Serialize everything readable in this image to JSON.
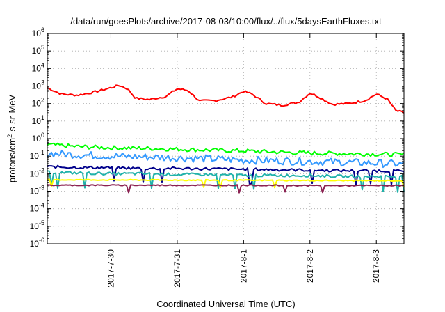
{
  "chart_data": {
    "type": "line",
    "title": "/data/run/goesPlots/archive/2017-08-03/10:00/flux/../flux/5daysEarthFluxes.txt",
    "xlabel": "Coordinated Universal Time (UTC)",
    "ylabel_parts": [
      "protons/cm",
      "2",
      "-s-sr-MeV"
    ],
    "yscale": "log",
    "ylim": [
      1e-06,
      1000000.0
    ],
    "y_ticks": [
      {
        "base": "10",
        "exp": "-6"
      },
      {
        "base": "10",
        "exp": "-5"
      },
      {
        "base": "10",
        "exp": "-4"
      },
      {
        "base": "10",
        "exp": "-3"
      },
      {
        "base": "10",
        "exp": "-2"
      },
      {
        "base": "10",
        "exp": "-1"
      },
      {
        "base": "10",
        "exp": "0"
      },
      {
        "base": "10",
        "exp": "1"
      },
      {
        "base": "10",
        "exp": "2"
      },
      {
        "base": "10",
        "exp": "3"
      },
      {
        "base": "10",
        "exp": "4"
      },
      {
        "base": "10",
        "exp": "5"
      },
      {
        "base": "10",
        "exp": "6"
      }
    ],
    "xlim": [
      "2017-07-29T01:00",
      "2017-08-03T10:00"
    ],
    "x_ticks": [
      "2017-7-30",
      "2017-7-31",
      "2017-8-1",
      "2017-8-2",
      "2017-8-3"
    ],
    "grid": true,
    "series": [
      {
        "color": "#ff0000",
        "width": 2,
        "points": [
          [
            "2017-07-29T01:00",
            800
          ],
          [
            "2017-07-29T06:00",
            350
          ],
          [
            "2017-07-29T12:00",
            300
          ],
          [
            "2017-07-29T18:00",
            450
          ],
          [
            "2017-07-30T00:00",
            800
          ],
          [
            "2017-07-30T03:00",
            1100
          ],
          [
            "2017-07-30T06:00",
            700
          ],
          [
            "2017-07-30T09:00",
            200
          ],
          [
            "2017-07-30T14:00",
            170
          ],
          [
            "2017-07-30T20:00",
            260
          ],
          [
            "2017-07-31T00:00",
            700
          ],
          [
            "2017-07-31T04:00",
            550
          ],
          [
            "2017-07-31T08:00",
            140
          ],
          [
            "2017-07-31T14:00",
            150
          ],
          [
            "2017-07-31T20:00",
            240
          ],
          [
            "2017-08-01T00:00",
            500
          ],
          [
            "2017-08-01T03:00",
            350
          ],
          [
            "2017-08-01T08:00",
            100
          ],
          [
            "2017-08-01T14:00",
            80
          ],
          [
            "2017-08-01T20:00",
            120
          ],
          [
            "2017-08-02T00:00",
            400
          ],
          [
            "2017-08-02T03:00",
            250
          ],
          [
            "2017-08-02T08:00",
            90
          ],
          [
            "2017-08-02T14:00",
            100
          ],
          [
            "2017-08-02T20:00",
            150
          ],
          [
            "2017-08-03T00:00",
            350
          ],
          [
            "2017-08-03T04:00",
            180
          ],
          [
            "2017-08-03T07:00",
            40
          ],
          [
            "2017-08-03T10:00",
            30
          ]
        ]
      },
      {
        "color": "#00ff00",
        "width": 2,
        "points": [
          [
            "2017-07-29T01:00",
            0.45
          ],
          [
            "2017-07-29T12:00",
            0.35
          ],
          [
            "2017-07-30T00:00",
            0.3
          ],
          [
            "2017-07-30T12:00",
            0.28
          ],
          [
            "2017-07-31T00:00",
            0.25
          ],
          [
            "2017-07-31T12:00",
            0.22
          ],
          [
            "2017-08-01T00:00",
            0.2
          ],
          [
            "2017-08-01T12:00",
            0.17
          ],
          [
            "2017-08-02T00:00",
            0.15
          ],
          [
            "2017-08-02T12:00",
            0.14
          ],
          [
            "2017-08-03T00:00",
            0.13
          ],
          [
            "2017-08-03T10:00",
            0.12
          ]
        ]
      },
      {
        "color": "#3399ff",
        "width": 2,
        "points": [
          [
            "2017-07-29T01:00",
            0.15
          ],
          [
            "2017-07-29T12:00",
            0.12
          ],
          [
            "2017-07-30T00:00",
            0.1
          ],
          [
            "2017-07-30T12:00",
            0.09
          ],
          [
            "2017-07-31T00:00",
            0.08
          ],
          [
            "2017-07-31T12:00",
            0.07
          ],
          [
            "2017-08-01T00:00",
            0.06
          ],
          [
            "2017-08-01T12:00",
            0.055
          ],
          [
            "2017-08-02T00:00",
            0.05
          ],
          [
            "2017-08-02T12:00",
            0.045
          ],
          [
            "2017-08-03T00:00",
            0.04
          ],
          [
            "2017-08-03T10:00",
            0.035
          ]
        ]
      },
      {
        "color": "#00008b",
        "width": 2,
        "points": [
          [
            "2017-07-29T01:00",
            0.025
          ],
          [
            "2017-07-29T12:00",
            0.023
          ],
          [
            "2017-07-30T00:00",
            0.022
          ],
          [
            "2017-07-30T12:00",
            0.02
          ],
          [
            "2017-07-31T00:00",
            0.02
          ],
          [
            "2017-07-31T12:00",
            0.019
          ],
          [
            "2017-08-01T00:00",
            0.018
          ],
          [
            "2017-08-01T12:00",
            0.017
          ],
          [
            "2017-08-02T00:00",
            0.016
          ],
          [
            "2017-08-02T12:00",
            0.015
          ],
          [
            "2017-08-03T00:00",
            0.015
          ],
          [
            "2017-08-03T10:00",
            0.014
          ]
        ]
      },
      {
        "color": "#20b2aa",
        "width": 2,
        "points": [
          [
            "2017-07-29T01:00",
            0.012
          ],
          [
            "2017-07-29T12:00",
            0.011
          ],
          [
            "2017-07-30T00:00",
            0.01
          ],
          [
            "2017-07-30T12:00",
            0.01
          ],
          [
            "2017-07-31T00:00",
            0.009
          ],
          [
            "2017-07-31T12:00",
            0.009
          ],
          [
            "2017-08-01T00:00",
            0.008
          ],
          [
            "2017-08-01T12:00",
            0.008
          ],
          [
            "2017-08-02T00:00",
            0.008
          ],
          [
            "2017-08-02T12:00",
            0.007
          ],
          [
            "2017-08-03T00:00",
            0.007
          ],
          [
            "2017-08-03T10:00",
            0.007
          ]
        ]
      },
      {
        "color": "#ffff00",
        "width": 2,
        "points": [
          [
            "2017-07-29T01:00",
            0.0045
          ],
          [
            "2017-07-30T00:00",
            0.0044
          ],
          [
            "2017-07-31T00:00",
            0.0043
          ],
          [
            "2017-08-01T00:00",
            0.0042
          ],
          [
            "2017-08-02T00:00",
            0.0041
          ],
          [
            "2017-08-03T00:00",
            0.004
          ],
          [
            "2017-08-03T10:00",
            0.004
          ]
        ]
      },
      {
        "color": "#8b2252",
        "width": 2,
        "points": [
          [
            "2017-07-29T01:00",
            0.0022
          ],
          [
            "2017-07-30T00:00",
            0.0022
          ],
          [
            "2017-07-31T00:00",
            0.0022
          ],
          [
            "2017-08-01T00:00",
            0.0022
          ],
          [
            "2017-08-02T00:00",
            0.0021
          ],
          [
            "2017-08-03T00:00",
            0.0021
          ],
          [
            "2017-08-03T10:00",
            0.0021
          ]
        ]
      }
    ]
  }
}
